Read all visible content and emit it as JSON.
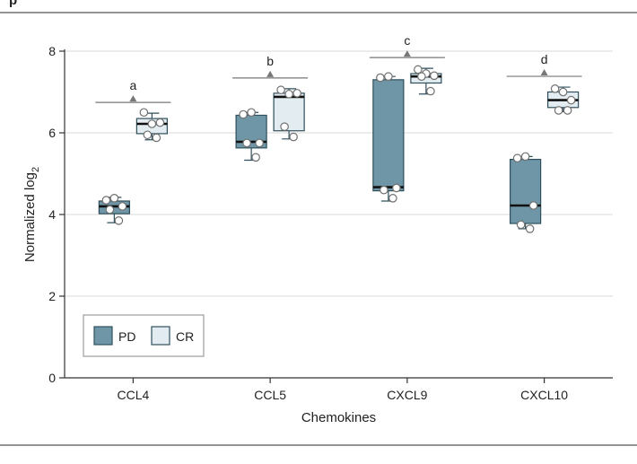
{
  "header": {
    "title_fragment": "p"
  },
  "colors": {
    "pd_fill": "#6f96a6",
    "pd_stroke": "#2f4f5c",
    "cr_fill": "#e3edf1",
    "cr_stroke": "#2f4f5c",
    "grid": "#d9d9d9",
    "axis": "#333333",
    "marker": "#707070",
    "rule": "#555555"
  },
  "chart_data": {
    "type": "box",
    "ylabel_main": "Normalized log",
    "ylabel_sub": "2",
    "xlabel": "Chemokines",
    "ylim": [
      0,
      8
    ],
    "yticks": [
      "0",
      "2",
      "4",
      "6",
      "8"
    ],
    "grid": true,
    "legend": {
      "placement": "bottom-left",
      "entries": [
        {
          "key": "PD",
          "label": "PD"
        },
        {
          "key": "CR",
          "label": "CR"
        }
      ]
    },
    "categories": [
      {
        "name": "CCL4",
        "annotation": "a",
        "PD": {
          "min": 3.8,
          "q1": 4.02,
          "median": 4.2,
          "q3": 4.33,
          "max": 4.42,
          "points": [
            4.35,
            4.4,
            4.2,
            4.12,
            3.85
          ]
        },
        "CR": {
          "min": 5.83,
          "q1": 5.98,
          "median": 6.22,
          "q3": 6.35,
          "max": 6.48,
          "points": [
            6.5,
            6.22,
            6.25,
            5.95,
            5.88
          ]
        }
      },
      {
        "name": "CCL5",
        "annotation": "b",
        "PD": {
          "min": 5.33,
          "q1": 5.63,
          "median": 5.78,
          "q3": 6.43,
          "max": 6.5,
          "points": [
            6.45,
            6.5,
            5.75,
            5.75,
            5.4
          ]
        },
        "CR": {
          "min": 5.85,
          "q1": 6.05,
          "median": 6.88,
          "q3": 6.97,
          "max": 7.08,
          "points": [
            7.05,
            6.95,
            6.97,
            6.15,
            5.9
          ]
        }
      },
      {
        "name": "CXCL9",
        "annotation": "c",
        "PD": {
          "min": 4.33,
          "q1": 4.58,
          "median": 4.67,
          "q3": 7.3,
          "max": 7.38,
          "points": [
            7.35,
            7.38,
            4.65,
            4.6,
            4.4
          ]
        },
        "CR": {
          "min": 6.95,
          "q1": 7.22,
          "median": 7.38,
          "q3": 7.45,
          "max": 7.58,
          "points": [
            7.55,
            7.45,
            7.4,
            7.38,
            7.02
          ]
        }
      },
      {
        "name": "CXCL10",
        "annotation": "d",
        "PD": {
          "min": 3.65,
          "q1": 3.78,
          "median": 4.22,
          "q3": 5.35,
          "max": 5.42,
          "points": [
            5.38,
            5.42,
            4.22,
            3.75,
            3.65
          ]
        },
        "CR": {
          "min": 6.52,
          "q1": 6.62,
          "median": 6.8,
          "q3": 7.0,
          "max": 7.12,
          "points": [
            7.08,
            7.0,
            6.8,
            6.55,
            6.55
          ]
        }
      }
    ]
  }
}
